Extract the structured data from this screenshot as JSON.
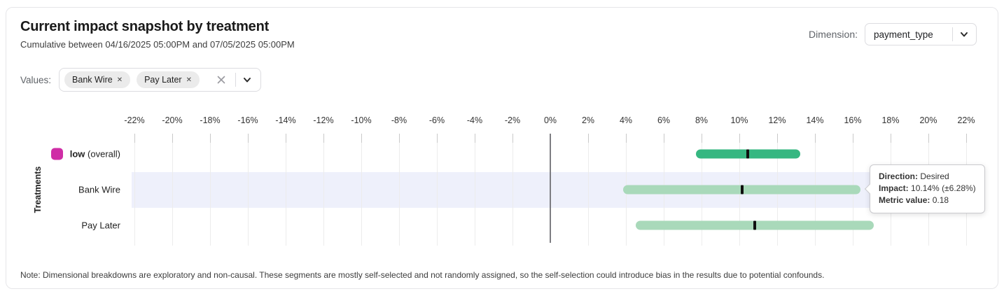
{
  "header": {
    "title": "Current impact snapshot by treatment",
    "subtitle": "Cumulative between 04/16/2025 05:00PM and 07/05/2025 05:00PM",
    "dimension_label": "Dimension:",
    "dimension_value": "payment_type"
  },
  "filters": {
    "values_label": "Values:",
    "chips": [
      "Bank Wire",
      "Pay Later"
    ],
    "chip_remove_icon": "✕"
  },
  "chart_data": {
    "type": "range_bar",
    "orientation": "horizontal",
    "title": "Current impact snapshot by treatment",
    "ylabel": "Treatments",
    "axis": {
      "min": -22,
      "max": 22,
      "step": 2,
      "unit": "%"
    },
    "tick_labels": [
      "-22%",
      "-20%",
      "-18%",
      "-16%",
      "-14%",
      "-12%",
      "-10%",
      "-8%",
      "-6%",
      "-4%",
      "-2%",
      "0%",
      "2%",
      "4%",
      "6%",
      "8%",
      "10%",
      "12%",
      "14%",
      "16%",
      "18%",
      "20%",
      "22%"
    ],
    "grid": true,
    "rows": [
      {
        "label": "low",
        "label_note": "(overall)",
        "legend_color": "#cf2da6",
        "impact_pct": 10.46,
        "moe_pct": 2.77,
        "bar_color": "#36b781",
        "highlighted": false
      },
      {
        "label": "Bank Wire",
        "impact_pct": 10.14,
        "moe_pct": 6.28,
        "bar_color": "#a9d9ba",
        "highlighted": true
      },
      {
        "label": "Pay Later",
        "impact_pct": 10.81,
        "moe_pct": 6.3,
        "bar_color": "#a9d9ba",
        "highlighted": false
      }
    ],
    "colors": {
      "highlight_band": "#eef0fb",
      "zero_line": "#7d7d82",
      "point_marker": "#101010"
    }
  },
  "tooltip": {
    "direction_label": "Direction:",
    "direction_value": "Desired",
    "impact_label": "Impact:",
    "impact_value": "10.14% (±6.28%)",
    "metric_label": "Metric value:",
    "metric_value": "0.18"
  },
  "note": "Note: Dimensional breakdowns are exploratory and non-causal. These segments are mostly self-selected and not randomly assigned, so the self-selection could introduce bias in the results due to potential confounds."
}
